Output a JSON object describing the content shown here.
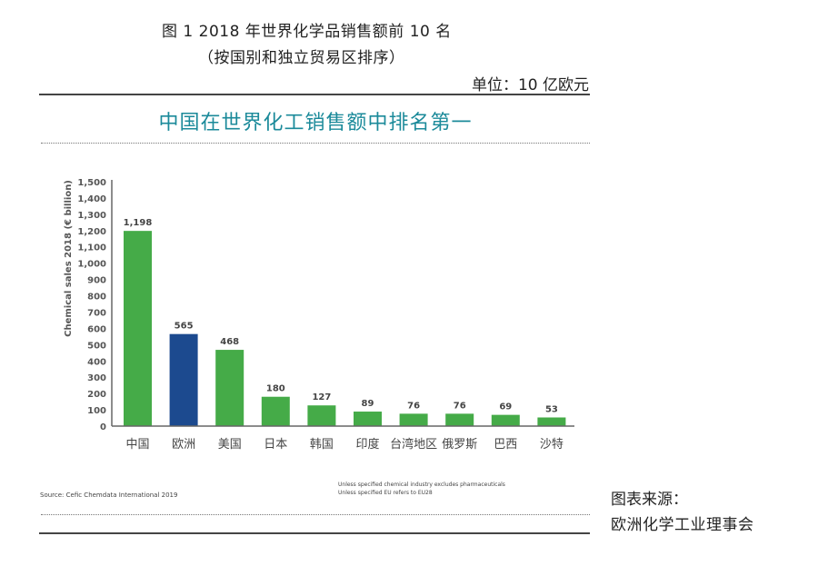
{
  "figure": {
    "title": "图 1  2018 年世界化学品销售额前 10 名",
    "subtitle": "（按国别和独立贸易区排序）",
    "unit": "单位：10 亿欧元",
    "chart_heading": "中国在世界化工销售额中排名第一",
    "source_note": "Source: Cefic Chemdata International 2019",
    "footnotes": [
      "Unless specified chemical industry excludes pharmaceuticals",
      "Unless specified EU refers to EU28"
    ],
    "credit_heading": "图表来源：",
    "credit_org": "欧洲化学工业理事会"
  },
  "colors": {
    "bar_default": "#45ab48",
    "bar_highlight": "#1c4a8f",
    "heading": "#1b8a9a",
    "axis": "#666666"
  },
  "chart_data": {
    "type": "bar",
    "title": "中国在世界化工销售额中排名第一",
    "xlabel": "",
    "ylabel": "Chemical sales 2018 (€ billion)",
    "ylim": [
      0,
      1500
    ],
    "yticks": [
      0,
      100,
      200,
      300,
      400,
      500,
      600,
      700,
      800,
      900,
      1000,
      1100,
      1200,
      1300,
      1400,
      1500
    ],
    "ytick_labels": [
      "0",
      "100",
      "200",
      "300",
      "400",
      "500",
      "600",
      "700",
      "800",
      "900",
      "1,000",
      "1,100",
      "1,200",
      "1,300",
      "1,400",
      "1,500"
    ],
    "grid": false,
    "categories": [
      "中国",
      "欧洲",
      "美国",
      "日本",
      "韩国",
      "印度",
      "台湾地区",
      "俄罗斯",
      "巴西",
      "沙特"
    ],
    "values": [
      1198,
      565,
      468,
      180,
      127,
      89,
      76,
      76,
      69,
      53
    ],
    "value_labels": [
      "1,198",
      "565",
      "468",
      "180",
      "127",
      "89",
      "76",
      "76",
      "69",
      "53"
    ],
    "highlight_index": 1
  }
}
